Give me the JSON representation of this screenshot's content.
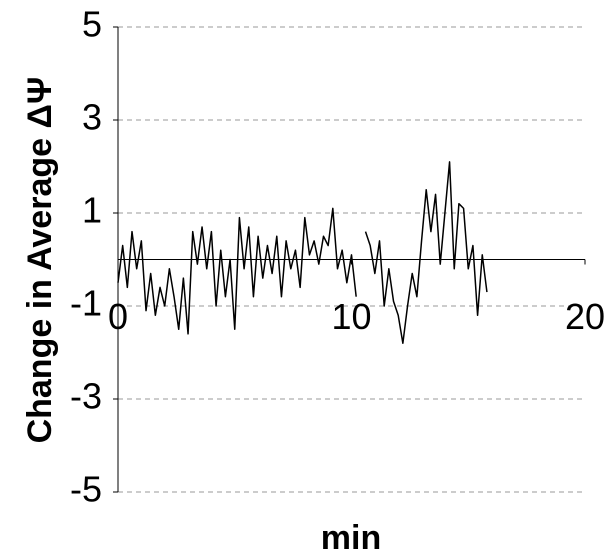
{
  "chart_data": {
    "type": "line",
    "x_label": "min",
    "y_label": "Change in Average ΔΨ",
    "xlim": [
      0,
      20
    ],
    "xticks": [
      0,
      10,
      20
    ],
    "ylim": [
      -5,
      5
    ],
    "yticks": [
      -5,
      -3,
      -1,
      1,
      3,
      5
    ],
    "grid": true,
    "series": [
      {
        "color": "#000000",
        "x": [
          0,
          0.2,
          0.4,
          0.6,
          0.8,
          1,
          1.2,
          1.4,
          1.6,
          1.8,
          2,
          2.2,
          2.4,
          2.6,
          2.8,
          3,
          3.2,
          3.4,
          3.6,
          3.8,
          4,
          4.2,
          4.4,
          4.6,
          4.8,
          5,
          5.2,
          5.4,
          5.6,
          5.8,
          6,
          6.2,
          6.4,
          6.6,
          6.8,
          7,
          7.2,
          7.4,
          7.6,
          7.8,
          8,
          8.2,
          8.4,
          8.6,
          8.8,
          9,
          9.2,
          9.4,
          9.6,
          9.8,
          10,
          10.2,
          10.4,
          10.6,
          10.8,
          11,
          11.2,
          11.4,
          11.6,
          11.8,
          12,
          12.2,
          12.4,
          12.6,
          12.8,
          13,
          13.2,
          13.4,
          13.6,
          13.8,
          14,
          14.2,
          14.4,
          14.6,
          14.8,
          15,
          15.2,
          15.4,
          15.6,
          15.8
        ],
        "values": [
          -0.5,
          0.3,
          -0.6,
          0.6,
          -0.2,
          0.4,
          -1.1,
          -0.3,
          -1.2,
          -0.6,
          -1.0,
          -0.2,
          -0.8,
          -1.5,
          -0.4,
          -1.6,
          0.6,
          -0.1,
          0.7,
          -0.2,
          0.6,
          -1.0,
          0.2,
          -0.8,
          0.0,
          -1.5,
          0.9,
          -0.2,
          0.7,
          -0.8,
          0.5,
          -0.4,
          0.3,
          -0.3,
          0.5,
          -0.8,
          0.4,
          -0.2,
          0.2,
          -0.6,
          0.9,
          0.1,
          0.4,
          -0.1,
          0.5,
          0.3,
          1.1,
          -0.2,
          0.2,
          -0.5,
          0.1,
          -0.8,
          null,
          0.6,
          0.3,
          -0.3,
          0.4,
          -1.0,
          -0.2,
          -0.9,
          -1.2,
          -1.8,
          -1.0,
          -0.3,
          -0.8,
          0.4,
          1.5,
          0.6,
          1.4,
          -0.1,
          1.0,
          2.1,
          -0.2,
          1.2,
          1.1,
          -0.2,
          0.3,
          -1.2,
          0.1,
          -0.7
        ]
      }
    ]
  }
}
